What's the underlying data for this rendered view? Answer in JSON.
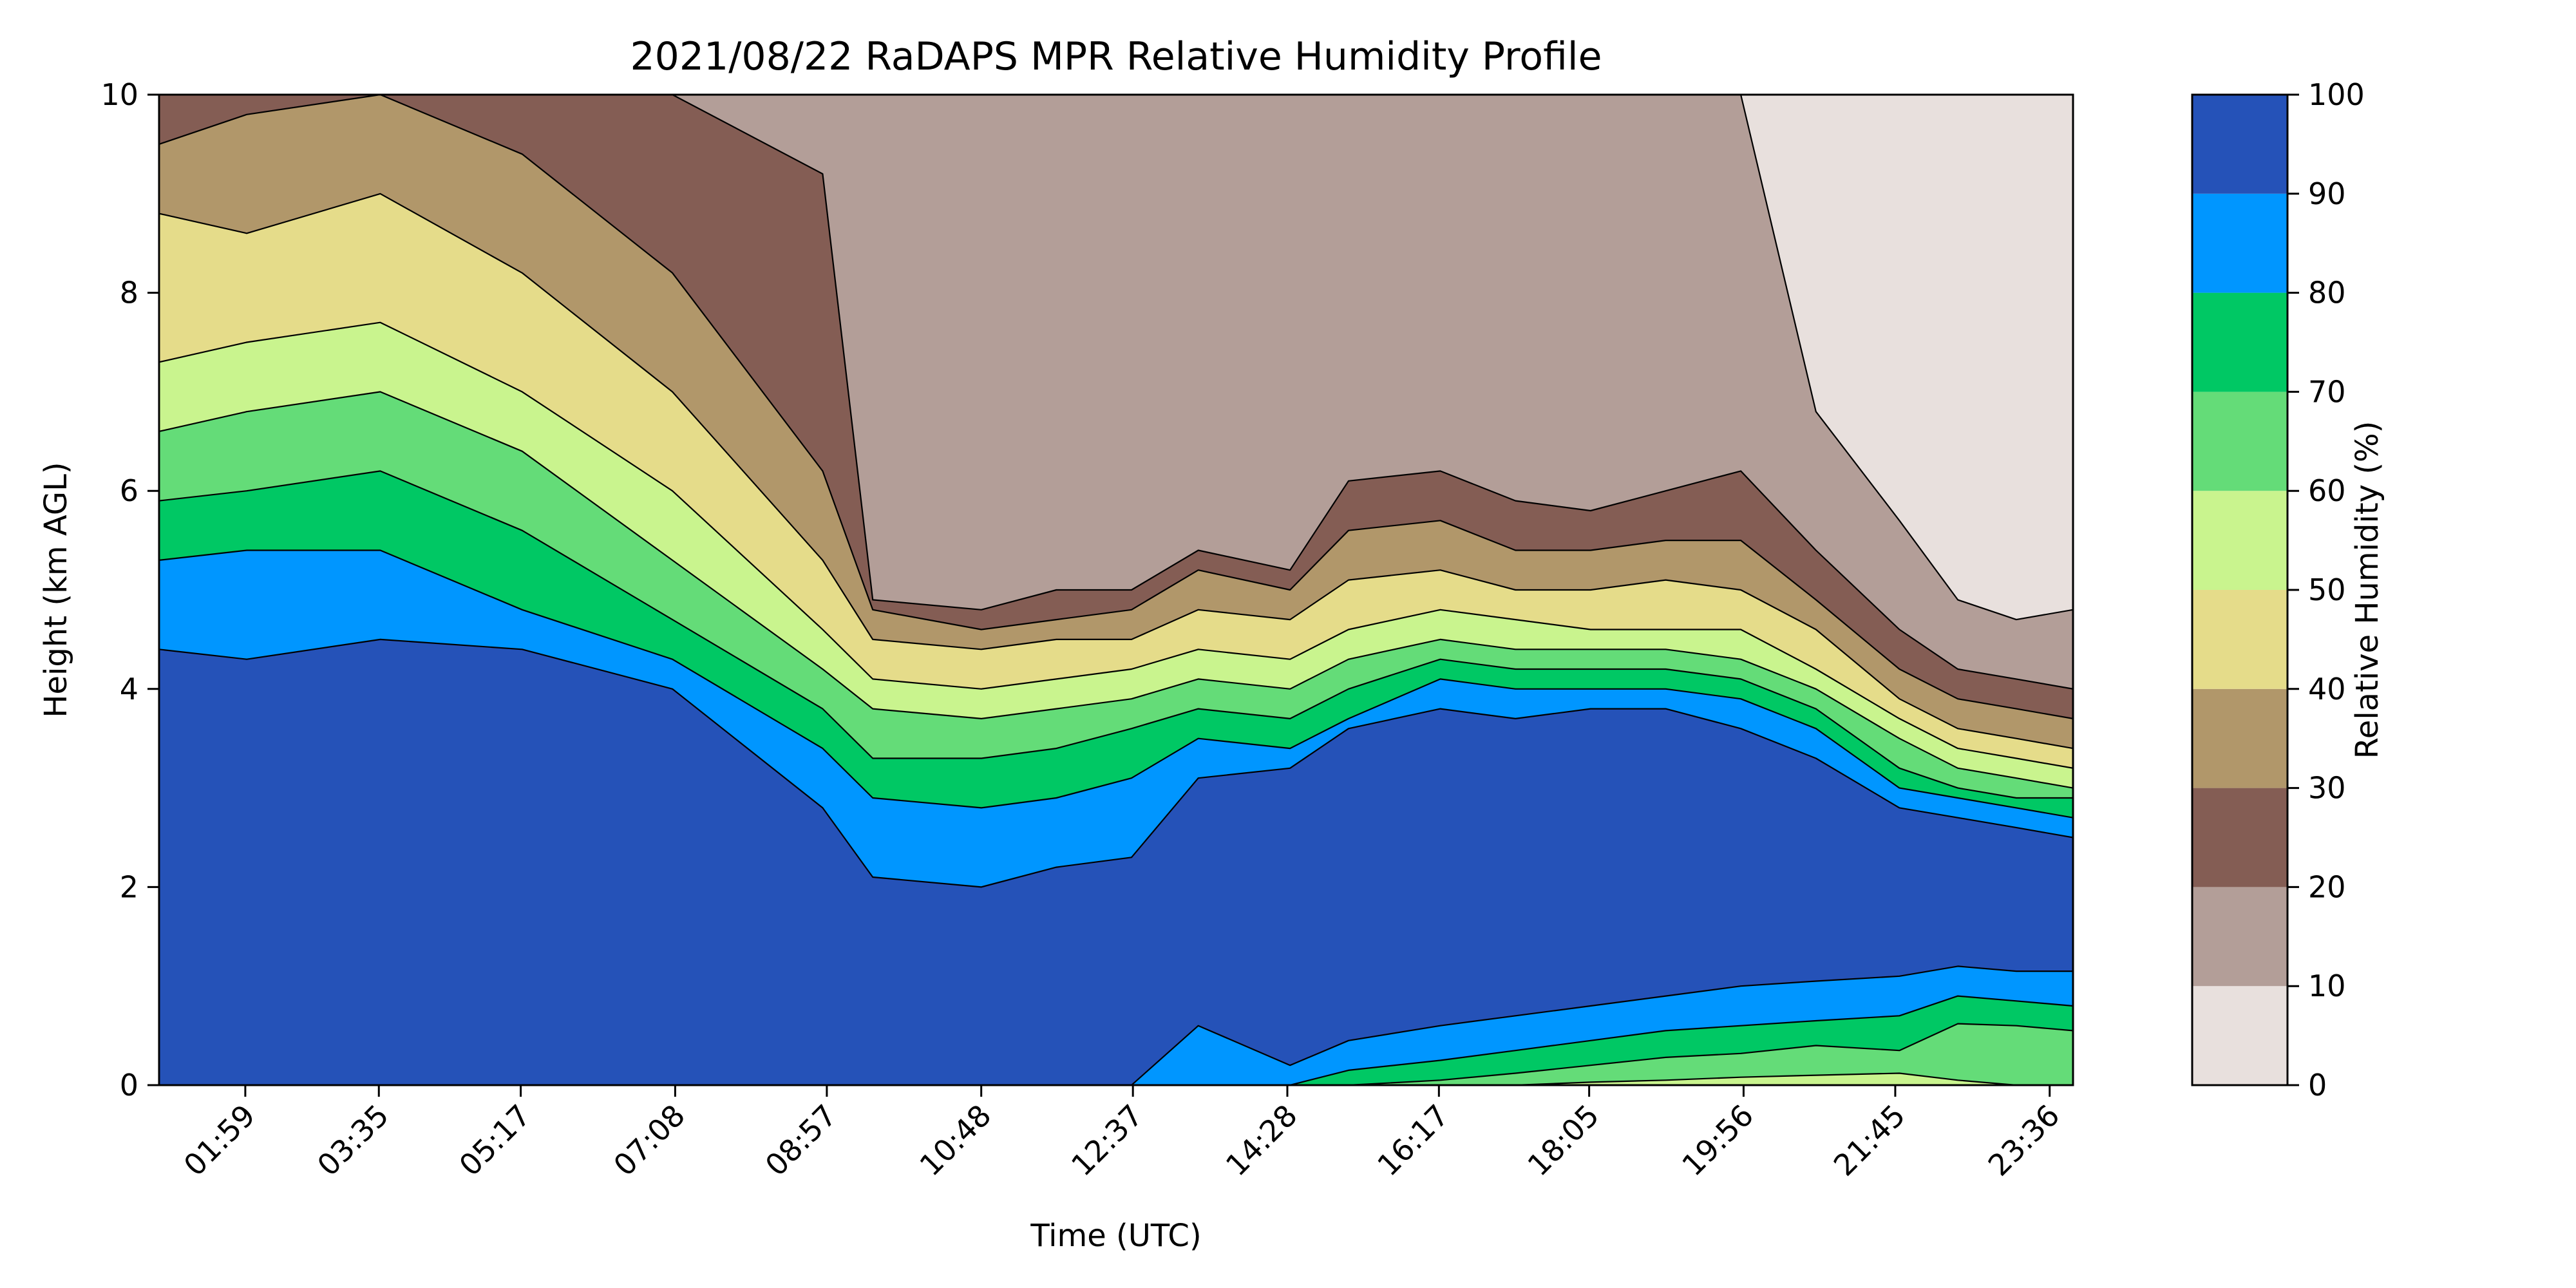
{
  "chart_data": {
    "type": "heatmap",
    "subtype": "filled-contour",
    "title": "2021/08/22 RaDAPS MPR Relative Humidity Profile",
    "xlabel": "Time (UTC)",
    "ylabel": "Height (km AGL)",
    "colorbar_label": "Relative Humidity (%)",
    "x_ticks": [
      {
        "value": 1.983,
        "label": "01:59"
      },
      {
        "value": 3.583,
        "label": "03:35"
      },
      {
        "value": 5.283,
        "label": "05:17"
      },
      {
        "value": 7.133,
        "label": "07:08"
      },
      {
        "value": 8.95,
        "label": "08:57"
      },
      {
        "value": 10.8,
        "label": "10:48"
      },
      {
        "value": 12.617,
        "label": "12:37"
      },
      {
        "value": 14.467,
        "label": "14:28"
      },
      {
        "value": 16.283,
        "label": "16:17"
      },
      {
        "value": 18.083,
        "label": "18:05"
      },
      {
        "value": 19.933,
        "label": "19:56"
      },
      {
        "value": 21.75,
        "label": "21:45"
      },
      {
        "value": 23.6,
        "label": "23:36"
      }
    ],
    "xlim": [
      0.95,
      23.88
    ],
    "ylim": [
      0,
      10
    ],
    "y_ticks": [
      0,
      2,
      4,
      6,
      8,
      10
    ],
    "levels": [
      0,
      10,
      20,
      30,
      40,
      50,
      60,
      70,
      80,
      90,
      100
    ],
    "level_colors": [
      "#e8e0dd",
      "#b39e98",
      "#845d54",
      "#b1976a",
      "#e5dc8a",
      "#c9f48e",
      "#64dc78",
      "#00c864",
      "#0096ff",
      "#2552b8"
    ],
    "boundary_times": [
      0.95,
      2.0,
      3.6,
      5.3,
      7.1,
      8.9,
      9.5,
      10.8,
      11.7,
      12.6,
      13.4,
      14.5,
      15.2,
      16.3,
      17.2,
      18.1,
      19.0,
      19.9,
      20.8,
      21.8,
      22.5,
      23.2,
      23.88
    ],
    "contour_boundaries_km": [
      {
        "level": 90,
        "heights": [
          4.4,
          4.3,
          4.5,
          4.4,
          4.0,
          2.8,
          2.1,
          2.0,
          2.2,
          2.3,
          3.1,
          3.2,
          3.6,
          3.8,
          3.7,
          3.8,
          3.8,
          3.6,
          3.3,
          2.8,
          2.7,
          2.6,
          2.5
        ]
      },
      {
        "level": 80,
        "heights": [
          5.3,
          5.4,
          5.4,
          4.8,
          4.3,
          3.4,
          2.9,
          2.8,
          2.9,
          3.1,
          3.5,
          3.4,
          3.7,
          4.1,
          4.0,
          4.0,
          4.0,
          3.9,
          3.6,
          3.0,
          2.9,
          2.8,
          2.7
        ]
      },
      {
        "level": 70,
        "heights": [
          5.9,
          6.0,
          6.2,
          5.6,
          4.7,
          3.8,
          3.3,
          3.3,
          3.4,
          3.6,
          3.8,
          3.7,
          4.0,
          4.3,
          4.2,
          4.2,
          4.2,
          4.1,
          3.8,
          3.2,
          3.0,
          2.9,
          2.9
        ]
      },
      {
        "level": 60,
        "heights": [
          6.6,
          6.8,
          7.0,
          6.4,
          5.3,
          4.2,
          3.8,
          3.7,
          3.8,
          3.9,
          4.1,
          4.0,
          4.3,
          4.5,
          4.4,
          4.4,
          4.4,
          4.3,
          4.0,
          3.5,
          3.2,
          3.1,
          3.0
        ]
      },
      {
        "level": 50,
        "heights": [
          7.3,
          7.5,
          7.7,
          7.0,
          6.0,
          4.6,
          4.1,
          4.0,
          4.1,
          4.2,
          4.4,
          4.3,
          4.6,
          4.8,
          4.7,
          4.6,
          4.6,
          4.6,
          4.2,
          3.7,
          3.4,
          3.3,
          3.2
        ]
      },
      {
        "level": 40,
        "heights": [
          8.8,
          8.6,
          9.0,
          8.2,
          7.0,
          5.3,
          4.5,
          4.4,
          4.5,
          4.5,
          4.8,
          4.7,
          5.1,
          5.2,
          5.0,
          5.0,
          5.1,
          5.0,
          4.6,
          3.9,
          3.6,
          3.5,
          3.4
        ]
      },
      {
        "level": 30,
        "heights": [
          9.5,
          9.8,
          10.0,
          9.4,
          8.2,
          6.2,
          4.8,
          4.6,
          4.7,
          4.8,
          5.2,
          5.0,
          5.6,
          5.7,
          5.4,
          5.4,
          5.5,
          5.5,
          4.9,
          4.2,
          3.9,
          3.8,
          3.7
        ]
      },
      {
        "level": 20,
        "heights": [
          10.0,
          10.0,
          10.0,
          10.0,
          10.0,
          9.2,
          4.9,
          4.8,
          5.0,
          5.0,
          5.4,
          5.2,
          6.1,
          6.2,
          5.9,
          5.8,
          6.0,
          6.2,
          5.4,
          4.6,
          4.2,
          4.1,
          4.0
        ]
      },
      {
        "level": 10,
        "heights": [
          10.0,
          10.0,
          10.0,
          10.0,
          10.0,
          10.0,
          10.0,
          10.0,
          10.0,
          10.0,
          10.0,
          10.0,
          10.0,
          10.0,
          10.0,
          10.0,
          10.0,
          10.0,
          6.8,
          5.7,
          4.9,
          4.7,
          4.8
        ]
      }
    ],
    "lower_layers_km": [
      {
        "level": 90,
        "heights": [
          0,
          0,
          0,
          0,
          0,
          0,
          0,
          0,
          0,
          0,
          0.6,
          0.2,
          0.45,
          0.6,
          0.7,
          0.8,
          0.9,
          1.0,
          1.05,
          1.1,
          1.2,
          1.15,
          1.15
        ]
      },
      {
        "level": 80,
        "heights": [
          0,
          0,
          0,
          0,
          0,
          0,
          0,
          0,
          0,
          0,
          0,
          0,
          0.15,
          0.25,
          0.35,
          0.45,
          0.55,
          0.6,
          0.65,
          0.7,
          0.9,
          0.85,
          0.8
        ]
      },
      {
        "level": 70,
        "heights": [
          0,
          0,
          0,
          0,
          0,
          0,
          0,
          0,
          0,
          0,
          0,
          0,
          0,
          0.05,
          0.12,
          0.2,
          0.28,
          0.32,
          0.4,
          0.35,
          0.62,
          0.6,
          0.55
        ]
      },
      {
        "level": 60,
        "heights": [
          0,
          0,
          0,
          0,
          0,
          0,
          0,
          0,
          0,
          0,
          0,
          0,
          0,
          0,
          0,
          0.03,
          0.05,
          0.08,
          0.1,
          0.12,
          0.05,
          0,
          0
        ]
      }
    ],
    "colorbar_ticks": [
      0,
      10,
      20,
      30,
      40,
      50,
      60,
      70,
      80,
      90,
      100
    ],
    "grid": false,
    "legend": "colorbar-right"
  }
}
